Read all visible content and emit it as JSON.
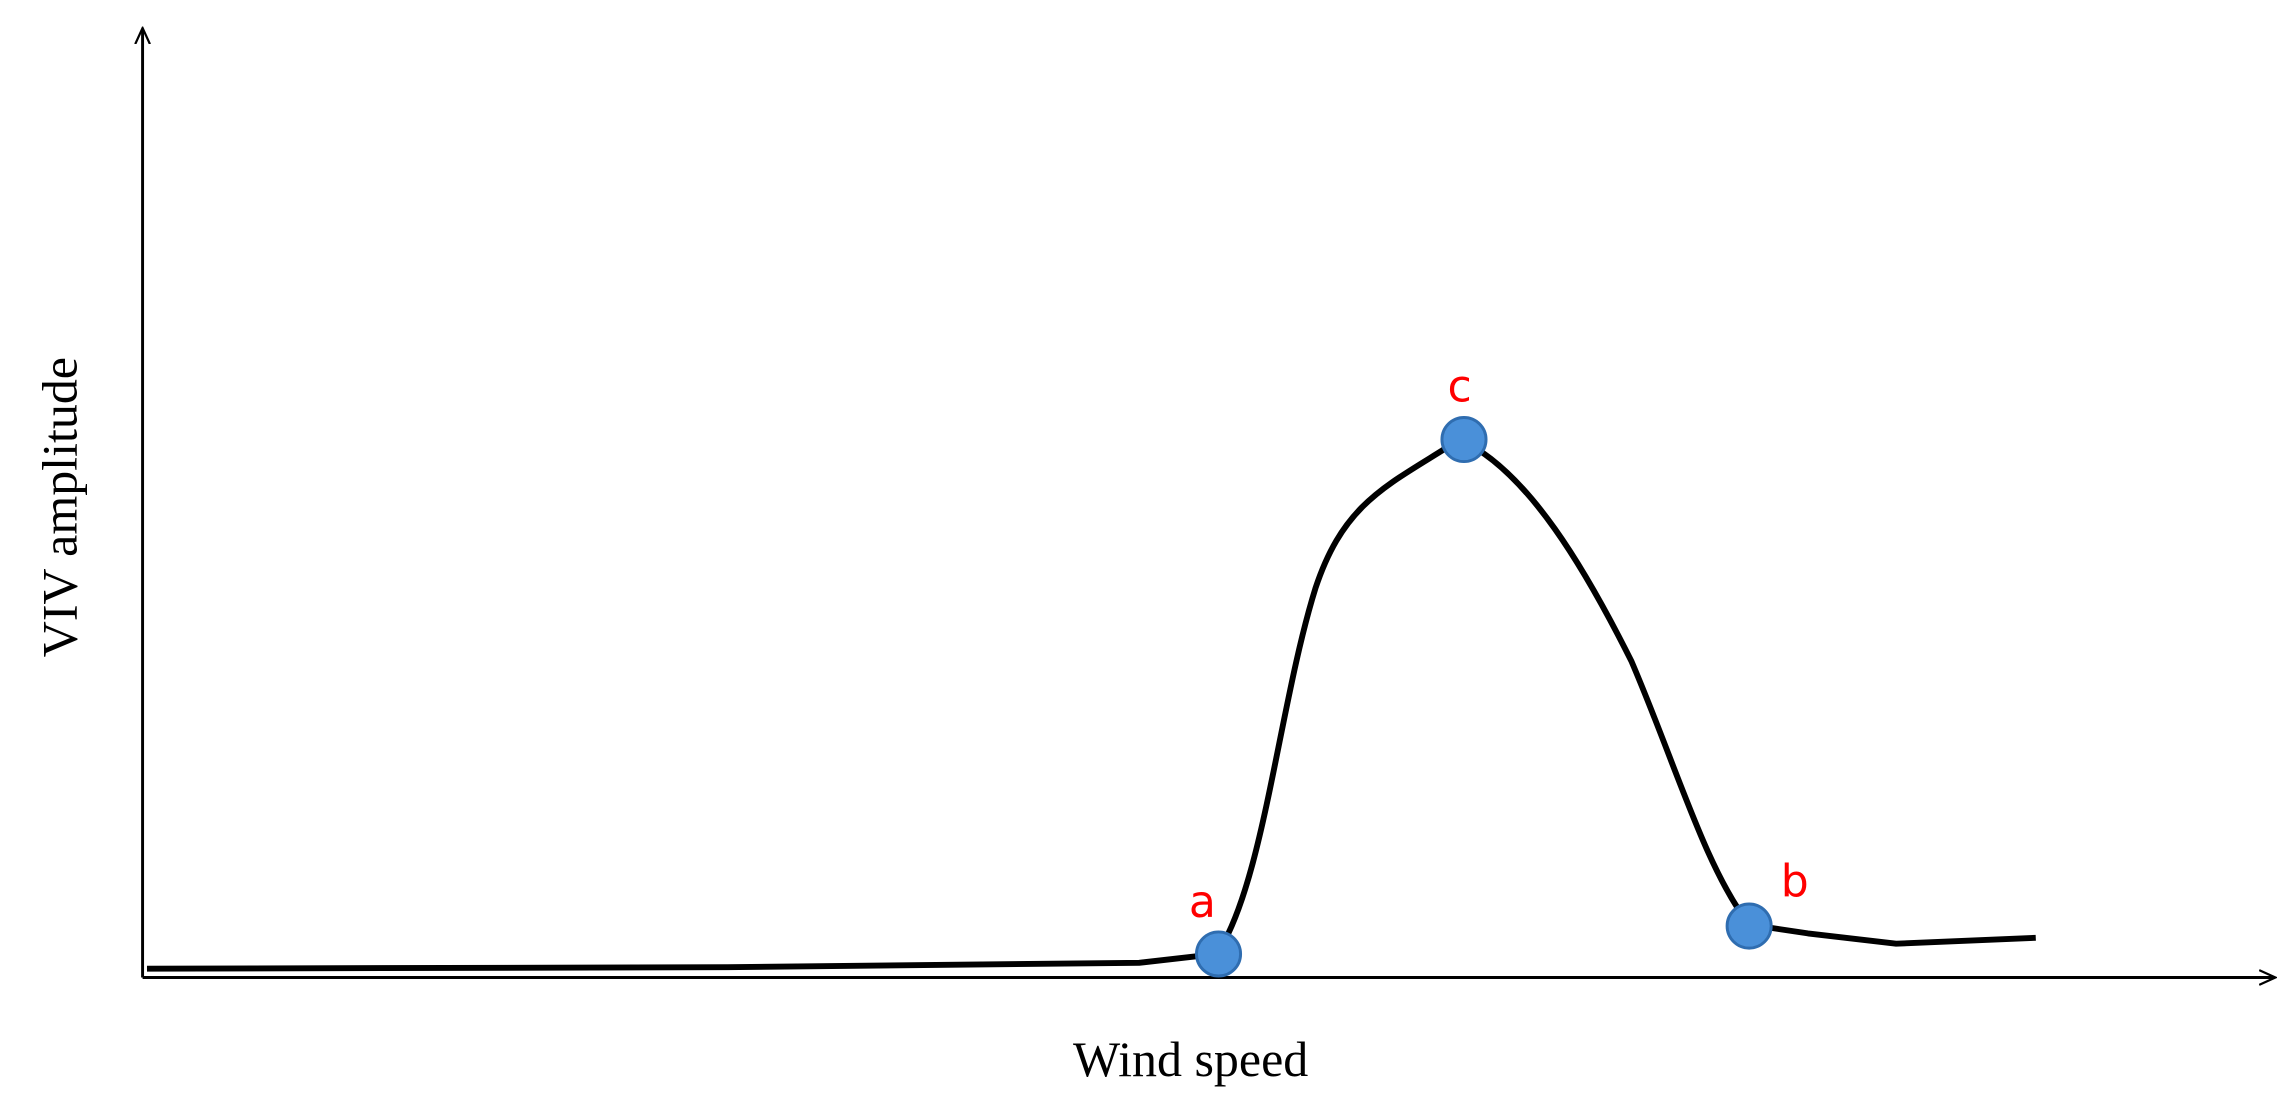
{
  "axes": {
    "x_label": "Wind speed",
    "y_label": "VIV amplitude"
  },
  "points": [
    {
      "label": "a"
    },
    {
      "label": "c"
    },
    {
      "label": "b"
    }
  ]
}
